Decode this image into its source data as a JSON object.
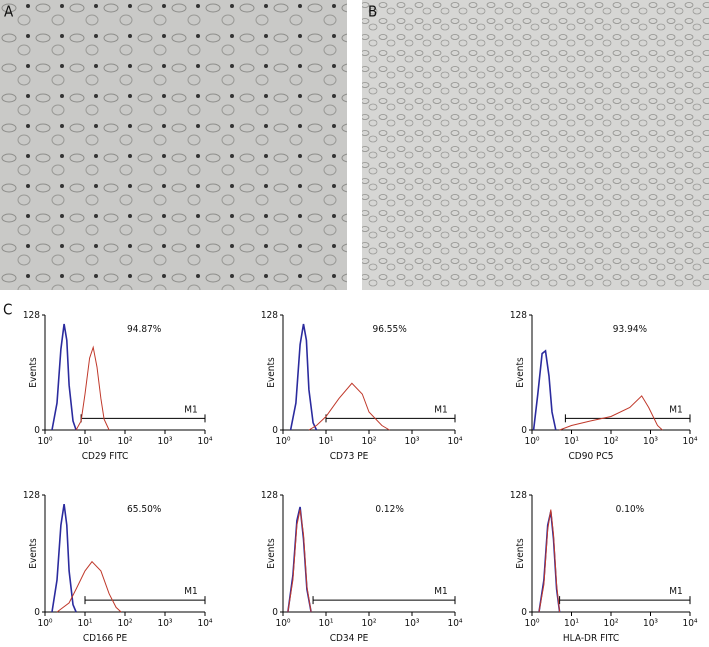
{
  "panels": {
    "a": "A",
    "b": "B",
    "c": "C"
  },
  "chart_data": [
    {
      "type": "line",
      "annotation": "94.87%",
      "xlabel": "CD29 FITC",
      "ylabel": "Events",
      "log_x": true,
      "xlim": [
        1,
        10000
      ],
      "ylim": [
        0,
        128
      ],
      "xticks": [
        {
          "value": 1,
          "label": "10⁰"
        },
        {
          "value": 10,
          "label": "10¹"
        },
        {
          "value": 100,
          "label": "10²"
        },
        {
          "value": 1000,
          "label": "10³"
        },
        {
          "value": 10000,
          "label": "10⁴"
        }
      ],
      "yticks": [
        0,
        128
      ],
      "gate": {
        "label": "M1",
        "range": [
          8,
          10000
        ],
        "level": 13
      },
      "series": [
        {
          "color": "#2b2b9e",
          "x": [
            1.5,
            2,
            2.5,
            3,
            3.5,
            4,
            5,
            6
          ],
          "values": [
            0,
            30,
            90,
            118,
            100,
            50,
            10,
            0
          ]
        },
        {
          "color": "#c0392b",
          "x": [
            6,
            8,
            10,
            13,
            16,
            20,
            25,
            30,
            40
          ],
          "values": [
            0,
            10,
            40,
            80,
            92,
            70,
            35,
            12,
            0
          ]
        }
      ]
    },
    {
      "type": "line",
      "annotation": "96.55%",
      "xlabel": "CD73 PE",
      "ylabel": "Events",
      "log_x": true,
      "xlim": [
        1,
        10000
      ],
      "ylim": [
        0,
        128
      ],
      "xticks": [
        {
          "value": 1,
          "label": "10⁰"
        },
        {
          "value": 10,
          "label": "10¹"
        },
        {
          "value": 100,
          "label": "10²"
        },
        {
          "value": 1000,
          "label": "10³"
        },
        {
          "value": 10000,
          "label": "10⁴"
        }
      ],
      "yticks": [
        0,
        128
      ],
      "gate": {
        "label": "M1",
        "range": [
          10,
          10000
        ],
        "level": 13
      },
      "series": [
        {
          "color": "#2b2b9e",
          "x": [
            1.5,
            2,
            2.5,
            3,
            3.5,
            4,
            5,
            6
          ],
          "values": [
            0,
            30,
            95,
            118,
            100,
            45,
            8,
            0
          ]
        },
        {
          "color": "#c0392b",
          "x": [
            4,
            6,
            10,
            20,
            40,
            70,
            100,
            200,
            300
          ],
          "values": [
            0,
            5,
            15,
            35,
            52,
            40,
            20,
            5,
            0
          ]
        }
      ]
    },
    {
      "type": "line",
      "annotation": "93.94%",
      "xlabel": "CD90 PC5",
      "ylabel": "Events",
      "log_x": true,
      "xlim": [
        1,
        10000
      ],
      "ylim": [
        0,
        128
      ],
      "xticks": [
        {
          "value": 1,
          "label": "10⁰"
        },
        {
          "value": 10,
          "label": "10¹"
        },
        {
          "value": 100,
          "label": "10²"
        },
        {
          "value": 1000,
          "label": "10³"
        },
        {
          "value": 10000,
          "label": "10⁴"
        }
      ],
      "yticks": [
        0,
        128
      ],
      "gate": {
        "label": "M1",
        "range": [
          7,
          10000
        ],
        "level": 13
      },
      "series": [
        {
          "color": "#2b2b9e",
          "x": [
            1.1,
            1.4,
            1.8,
            2.2,
            2.7,
            3.2,
            4
          ],
          "values": [
            0,
            40,
            85,
            88,
            60,
            20,
            0
          ]
        },
        {
          "color": "#c0392b",
          "x": [
            5,
            10,
            30,
            100,
            300,
            600,
            900,
            1500,
            2000
          ],
          "values": [
            0,
            5,
            10,
            15,
            25,
            38,
            25,
            5,
            0
          ]
        }
      ]
    },
    {
      "type": "line",
      "annotation": "65.50%",
      "xlabel": "CD166 PE",
      "ylabel": "Events",
      "log_x": true,
      "xlim": [
        1,
        10000
      ],
      "ylim": [
        0,
        128
      ],
      "xticks": [
        {
          "value": 1,
          "label": "10⁰"
        },
        {
          "value": 10,
          "label": "10¹"
        },
        {
          "value": 100,
          "label": "10²"
        },
        {
          "value": 1000,
          "label": "10³"
        },
        {
          "value": 10000,
          "label": "10⁴"
        }
      ],
      "yticks": [
        0,
        128
      ],
      "gate": {
        "label": "M1",
        "range": [
          10,
          10000
        ],
        "level": 13
      },
      "series": [
        {
          "color": "#2b2b9e",
          "x": [
            1.5,
            2,
            2.5,
            3,
            3.5,
            4,
            5,
            6
          ],
          "values": [
            0,
            35,
            95,
            118,
            95,
            45,
            8,
            0
          ]
        },
        {
          "color": "#c0392b",
          "x": [
            2,
            4,
            6,
            10,
            15,
            25,
            40,
            60,
            80
          ],
          "values": [
            0,
            10,
            25,
            45,
            55,
            45,
            20,
            5,
            0
          ]
        }
      ]
    },
    {
      "type": "line",
      "annotation": "0.12%",
      "xlabel": "CD34 PE",
      "ylabel": "Events",
      "log_x": true,
      "xlim": [
        1,
        10000
      ],
      "ylim": [
        0,
        128
      ],
      "xticks": [
        {
          "value": 1,
          "label": "10⁰"
        },
        {
          "value": 10,
          "label": "10¹"
        },
        {
          "value": 100,
          "label": "10²"
        },
        {
          "value": 1000,
          "label": "10³"
        },
        {
          "value": 10000,
          "label": "10⁴"
        }
      ],
      "yticks": [
        0,
        128
      ],
      "gate": {
        "label": "M1",
        "range": [
          5,
          10000
        ],
        "level": 13
      },
      "series": [
        {
          "color": "#2b2b9e",
          "x": [
            1.3,
            1.7,
            2.1,
            2.5,
            3,
            3.6,
            4.5
          ],
          "values": [
            0,
            40,
            100,
            115,
            80,
            25,
            0
          ]
        },
        {
          "color": "#c0392b",
          "x": [
            1.3,
            1.7,
            2.1,
            2.5,
            3,
            3.6,
            4.5
          ],
          "values": [
            0,
            35,
            95,
            112,
            85,
            28,
            0
          ]
        }
      ]
    },
    {
      "type": "line",
      "annotation": "0.10%",
      "xlabel": "HLA-DR FITC",
      "ylabel": "Events",
      "log_x": true,
      "xlim": [
        1,
        10000
      ],
      "ylim": [
        0,
        128
      ],
      "xticks": [
        {
          "value": 1,
          "label": "10⁰"
        },
        {
          "value": 10,
          "label": "10¹"
        },
        {
          "value": 100,
          "label": "10²"
        },
        {
          "value": 1000,
          "label": "10³"
        },
        {
          "value": 10000,
          "label": "10⁴"
        }
      ],
      "yticks": [
        0,
        128
      ],
      "gate": {
        "label": "M1",
        "range": [
          5,
          10000
        ],
        "level": 13
      },
      "series": [
        {
          "color": "#2b2b9e",
          "x": [
            1.5,
            2,
            2.5,
            3,
            3.5,
            4.2,
            5
          ],
          "values": [
            0,
            35,
            95,
            110,
            80,
            25,
            0
          ]
        },
        {
          "color": "#c0392b",
          "x": [
            1.5,
            2,
            2.5,
            3,
            3.5,
            4.2,
            5
          ],
          "values": [
            0,
            30,
            90,
            112,
            85,
            30,
            0
          ]
        }
      ]
    }
  ]
}
